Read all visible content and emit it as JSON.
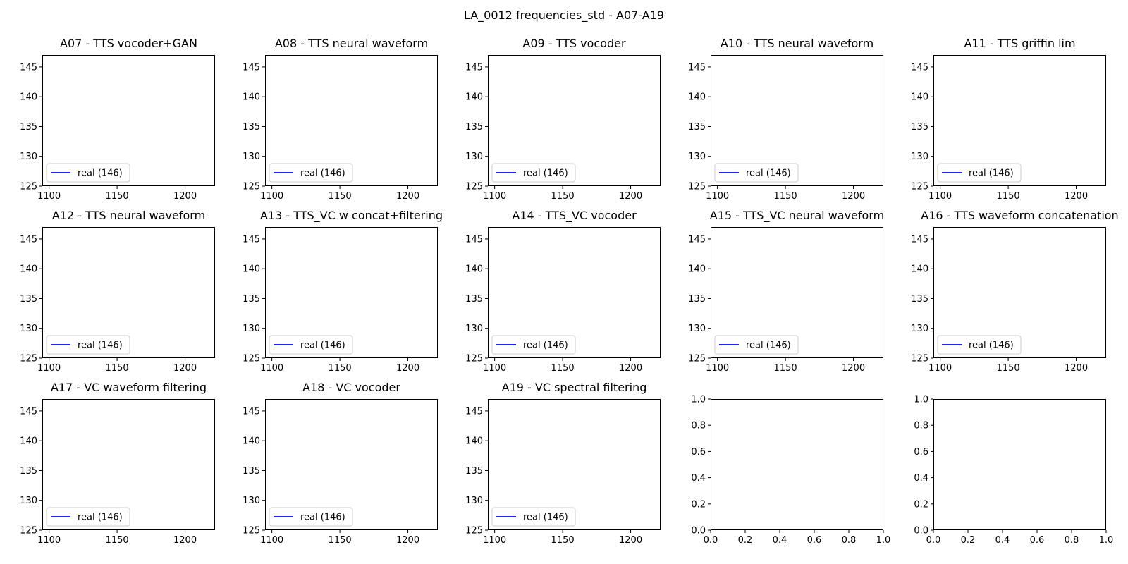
{
  "figure": {
    "title": "LA_0012 frequencies_std - A07-A19"
  },
  "style": {
    "line_color": "#0000ff",
    "axis_color": "#000000",
    "legend_border": "#cccccc"
  },
  "chart_data": [
    {
      "type": "line",
      "title": "A07 - TTS vocoder+GAN",
      "xlim": [
        1095,
        1222
      ],
      "ylim": [
        125,
        147
      ],
      "xticks": [
        "1100",
        "1150",
        "1200"
      ],
      "yticks": [
        "125",
        "130",
        "135",
        "140",
        "145"
      ],
      "series": [
        {
          "name": "real (146)",
          "x": [],
          "y": []
        }
      ],
      "legend": "lower left",
      "grid": false
    },
    {
      "type": "line",
      "title": "A08 - TTS neural waveform",
      "xlim": [
        1095,
        1222
      ],
      "ylim": [
        125,
        147
      ],
      "xticks": [
        "1100",
        "1150",
        "1200"
      ],
      "yticks": [
        "125",
        "130",
        "135",
        "140",
        "145"
      ],
      "series": [
        {
          "name": "real (146)",
          "x": [],
          "y": []
        }
      ],
      "legend": "lower left",
      "grid": false
    },
    {
      "type": "line",
      "title": "A09 - TTS vocoder",
      "xlim": [
        1095,
        1222
      ],
      "ylim": [
        125,
        147
      ],
      "xticks": [
        "1100",
        "1150",
        "1200"
      ],
      "yticks": [
        "125",
        "130",
        "135",
        "140",
        "145"
      ],
      "series": [
        {
          "name": "real (146)",
          "x": [],
          "y": []
        }
      ],
      "legend": "lower left",
      "grid": false
    },
    {
      "type": "line",
      "title": "A10 - TTS neural waveform",
      "xlim": [
        1095,
        1222
      ],
      "ylim": [
        125,
        147
      ],
      "xticks": [
        "1100",
        "1150",
        "1200"
      ],
      "yticks": [
        "125",
        "130",
        "135",
        "140",
        "145"
      ],
      "series": [
        {
          "name": "real (146)",
          "x": [],
          "y": []
        }
      ],
      "legend": "lower left",
      "grid": false
    },
    {
      "type": "line",
      "title": "A11 - TTS griffin lim",
      "xlim": [
        1095,
        1222
      ],
      "ylim": [
        125,
        147
      ],
      "xticks": [
        "1100",
        "1150",
        "1200"
      ],
      "yticks": [
        "125",
        "130",
        "135",
        "140",
        "145"
      ],
      "series": [
        {
          "name": "real (146)",
          "x": [],
          "y": []
        }
      ],
      "legend": "lower left",
      "grid": false
    },
    {
      "type": "line",
      "title": "A12 - TTS neural waveform",
      "xlim": [
        1095,
        1222
      ],
      "ylim": [
        125,
        147
      ],
      "xticks": [
        "1100",
        "1150",
        "1200"
      ],
      "yticks": [
        "125",
        "130",
        "135",
        "140",
        "145"
      ],
      "series": [
        {
          "name": "real (146)",
          "x": [],
          "y": []
        }
      ],
      "legend": "lower left",
      "grid": false
    },
    {
      "type": "line",
      "title": "A13 - TTS_VC w concat+filtering",
      "xlim": [
        1095,
        1222
      ],
      "ylim": [
        125,
        147
      ],
      "xticks": [
        "1100",
        "1150",
        "1200"
      ],
      "yticks": [
        "125",
        "130",
        "135",
        "140",
        "145"
      ],
      "series": [
        {
          "name": "real (146)",
          "x": [],
          "y": []
        }
      ],
      "legend": "lower left",
      "grid": false
    },
    {
      "type": "line",
      "title": "A14 - TTS_VC vocoder",
      "xlim": [
        1095,
        1222
      ],
      "ylim": [
        125,
        147
      ],
      "xticks": [
        "1100",
        "1150",
        "1200"
      ],
      "yticks": [
        "125",
        "130",
        "135",
        "140",
        "145"
      ],
      "series": [
        {
          "name": "real (146)",
          "x": [],
          "y": []
        }
      ],
      "legend": "lower left",
      "grid": false
    },
    {
      "type": "line",
      "title": "A15 - TTS_VC neural waveform",
      "xlim": [
        1095,
        1222
      ],
      "ylim": [
        125,
        147
      ],
      "xticks": [
        "1100",
        "1150",
        "1200"
      ],
      "yticks": [
        "125",
        "130",
        "135",
        "140",
        "145"
      ],
      "series": [
        {
          "name": "real (146)",
          "x": [],
          "y": []
        }
      ],
      "legend": "lower left",
      "grid": false
    },
    {
      "type": "line",
      "title": "A16 - TTS waveform concatenation",
      "xlim": [
        1095,
        1222
      ],
      "ylim": [
        125,
        147
      ],
      "xticks": [
        "1100",
        "1150",
        "1200"
      ],
      "yticks": [
        "125",
        "130",
        "135",
        "140",
        "145"
      ],
      "series": [
        {
          "name": "real (146)",
          "x": [],
          "y": []
        }
      ],
      "legend": "lower left",
      "grid": false
    },
    {
      "type": "line",
      "title": "A17 - VC waveform filtering",
      "xlim": [
        1095,
        1222
      ],
      "ylim": [
        125,
        147
      ],
      "xticks": [
        "1100",
        "1150",
        "1200"
      ],
      "yticks": [
        "125",
        "130",
        "135",
        "140",
        "145"
      ],
      "series": [
        {
          "name": "real (146)",
          "x": [],
          "y": []
        }
      ],
      "legend": "lower left",
      "grid": false
    },
    {
      "type": "line",
      "title": "A18 - VC vocoder",
      "xlim": [
        1095,
        1222
      ],
      "ylim": [
        125,
        147
      ],
      "xticks": [
        "1100",
        "1150",
        "1200"
      ],
      "yticks": [
        "125",
        "130",
        "135",
        "140",
        "145"
      ],
      "series": [
        {
          "name": "real (146)",
          "x": [],
          "y": []
        }
      ],
      "legend": "lower left",
      "grid": false
    },
    {
      "type": "line",
      "title": "A19 - VC spectral filtering",
      "xlim": [
        1095,
        1222
      ],
      "ylim": [
        125,
        147
      ],
      "xticks": [
        "1100",
        "1150",
        "1200"
      ],
      "yticks": [
        "125",
        "130",
        "135",
        "140",
        "145"
      ],
      "series": [
        {
          "name": "real (146)",
          "x": [],
          "y": []
        }
      ],
      "legend": "lower left",
      "grid": false
    },
    {
      "type": "line",
      "title": "",
      "xlim": [
        0,
        1
      ],
      "ylim": [
        0,
        1
      ],
      "xticks": [
        "0.0",
        "0.2",
        "0.4",
        "0.6",
        "0.8",
        "1.0"
      ],
      "yticks": [
        "0.0",
        "0.2",
        "0.4",
        "0.6",
        "0.8",
        "1.0"
      ],
      "series": [],
      "grid": false
    },
    {
      "type": "line",
      "title": "",
      "xlim": [
        0,
        1
      ],
      "ylim": [
        0,
        1
      ],
      "xticks": [
        "0.0",
        "0.2",
        "0.4",
        "0.6",
        "0.8",
        "1.0"
      ],
      "yticks": [
        "0.0",
        "0.2",
        "0.4",
        "0.6",
        "0.8",
        "1.0"
      ],
      "series": [],
      "grid": false
    }
  ]
}
